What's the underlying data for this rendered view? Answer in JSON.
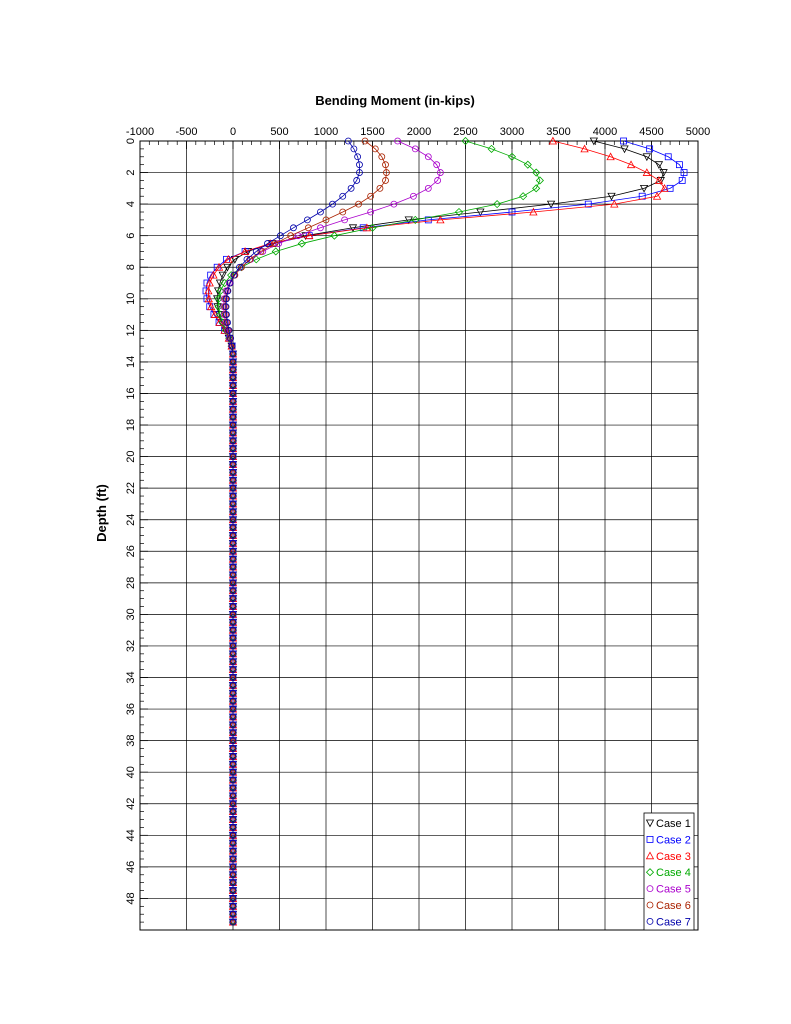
{
  "chart_data": {
    "type": "line",
    "title": "Bending Moment (in-kips)",
    "xlabel": "Bending Moment (in-kips)",
    "ylabel": "Depth (ft)",
    "xlim": [
      -1000,
      5000
    ],
    "ylim": [
      0,
      50
    ],
    "y_inverted": true,
    "x_axis_position": "top",
    "grid": true,
    "legend_position": "bottom-right",
    "x_ticks": [
      "-1000",
      "-500",
      "0",
      "500",
      "1000",
      "1500",
      "2000",
      "2500",
      "3000",
      "3500",
      "4000",
      "4500",
      "5000"
    ],
    "y_ticks": [
      "0",
      "2",
      "4",
      "6",
      "8",
      "10",
      "12",
      "14",
      "16",
      "18",
      "20",
      "22",
      "24",
      "26",
      "28",
      "30",
      "32",
      "34",
      "36",
      "38",
      "40",
      "42",
      "44",
      "46",
      "48"
    ],
    "depth": [
      0,
      0.5,
      1,
      1.5,
      2,
      2.5,
      3,
      3.5,
      4,
      4.5,
      5,
      5.5,
      6,
      6.5,
      7,
      7.5,
      8,
      8.5,
      9,
      9.5,
      10,
      10.5,
      11,
      11.5,
      12,
      12.5,
      13,
      13.5,
      14,
      14.5,
      15,
      15.5,
      16,
      16.5,
      17,
      17.5,
      18,
      18.5,
      19,
      19.5,
      20,
      20.5,
      21,
      21.5,
      22,
      22.5,
      23,
      23.5,
      24,
      24.5,
      25,
      25.5,
      26,
      26.5,
      27,
      27.5,
      28,
      28.5,
      29,
      29.5,
      30,
      30.5,
      31,
      31.5,
      32,
      32.5,
      33,
      33.5,
      34,
      34.5,
      35,
      35.5,
      36,
      36.5,
      37,
      37.5,
      38,
      38.5,
      39,
      39.5,
      40,
      40.5,
      41,
      41.5,
      42,
      42.5,
      43,
      43.5,
      44,
      44.5,
      45,
      45.5,
      46,
      46.5,
      47,
      47.5,
      48,
      48.5,
      49,
      49.5
    ],
    "series": [
      {
        "name": "Case 1",
        "color": "#000000",
        "marker": "triangle-down",
        "tail_zero": true,
        "values": [
          3880,
          4210,
          4450,
          4580,
          4630,
          4600,
          4420,
          4070,
          3420,
          2660,
          1890,
          1290,
          780,
          420,
          160,
          20,
          -60,
          -110,
          -140,
          -160,
          -170,
          -165,
          -150,
          -120,
          -80,
          -45,
          -15,
          0
        ]
      },
      {
        "name": "Case 2",
        "color": "#0000ff",
        "marker": "square",
        "tail_zero": true,
        "values": [
          4200,
          4480,
          4680,
          4800,
          4850,
          4830,
          4700,
          4400,
          3820,
          3000,
          2100,
          1400,
          820,
          430,
          130,
          -70,
          -170,
          -240,
          -280,
          -290,
          -280,
          -250,
          -205,
          -150,
          -90,
          -40,
          -10,
          0
        ]
      },
      {
        "name": "Case 3",
        "color": "#ff0000",
        "marker": "triangle-up",
        "tail_zero": true,
        "values": [
          3440,
          3780,
          4060,
          4280,
          4450,
          4580,
          4640,
          4560,
          4100,
          3230,
          2230,
          1440,
          820,
          400,
          130,
          -50,
          -150,
          -210,
          -250,
          -265,
          -260,
          -235,
          -195,
          -145,
          -90,
          -45,
          -15,
          0
        ]
      },
      {
        "name": "Case 4",
        "color": "#00aa00",
        "marker": "diamond",
        "tail_zero": true,
        "values": [
          2500,
          2780,
          3000,
          3170,
          3260,
          3300,
          3260,
          3120,
          2840,
          2430,
          1960,
          1500,
          1090,
          740,
          460,
          250,
          90,
          -20,
          -90,
          -135,
          -155,
          -155,
          -140,
          -110,
          -75,
          -40,
          -15,
          0
        ]
      },
      {
        "name": "Case 5",
        "color": "#aa00cc",
        "marker": "circle",
        "tail_zero": true,
        "values": [
          1770,
          1960,
          2100,
          2190,
          2230,
          2200,
          2100,
          1940,
          1730,
          1480,
          1200,
          940,
          700,
          490,
          320,
          190,
          90,
          15,
          -40,
          -75,
          -95,
          -100,
          -95,
          -80,
          -60,
          -35,
          -15,
          0
        ]
      },
      {
        "name": "Case 6",
        "color": "#aa2200",
        "marker": "circle",
        "tail_zero": true,
        "values": [
          1420,
          1530,
          1600,
          1640,
          1650,
          1640,
          1580,
          1480,
          1350,
          1180,
          1000,
          810,
          620,
          450,
          300,
          180,
          90,
          20,
          -30,
          -60,
          -80,
          -85,
          -80,
          -68,
          -50,
          -30,
          -12,
          0
        ]
      },
      {
        "name": "Case 7",
        "color": "#0000aa",
        "marker": "circle",
        "tail_zero": true,
        "values": [
          1240,
          1300,
          1340,
          1360,
          1360,
          1330,
          1270,
          1180,
          1070,
          940,
          800,
          650,
          510,
          370,
          250,
          150,
          70,
          10,
          -30,
          -55,
          -70,
          -75,
          -70,
          -58,
          -42,
          -25,
          -10,
          0
        ]
      }
    ]
  }
}
